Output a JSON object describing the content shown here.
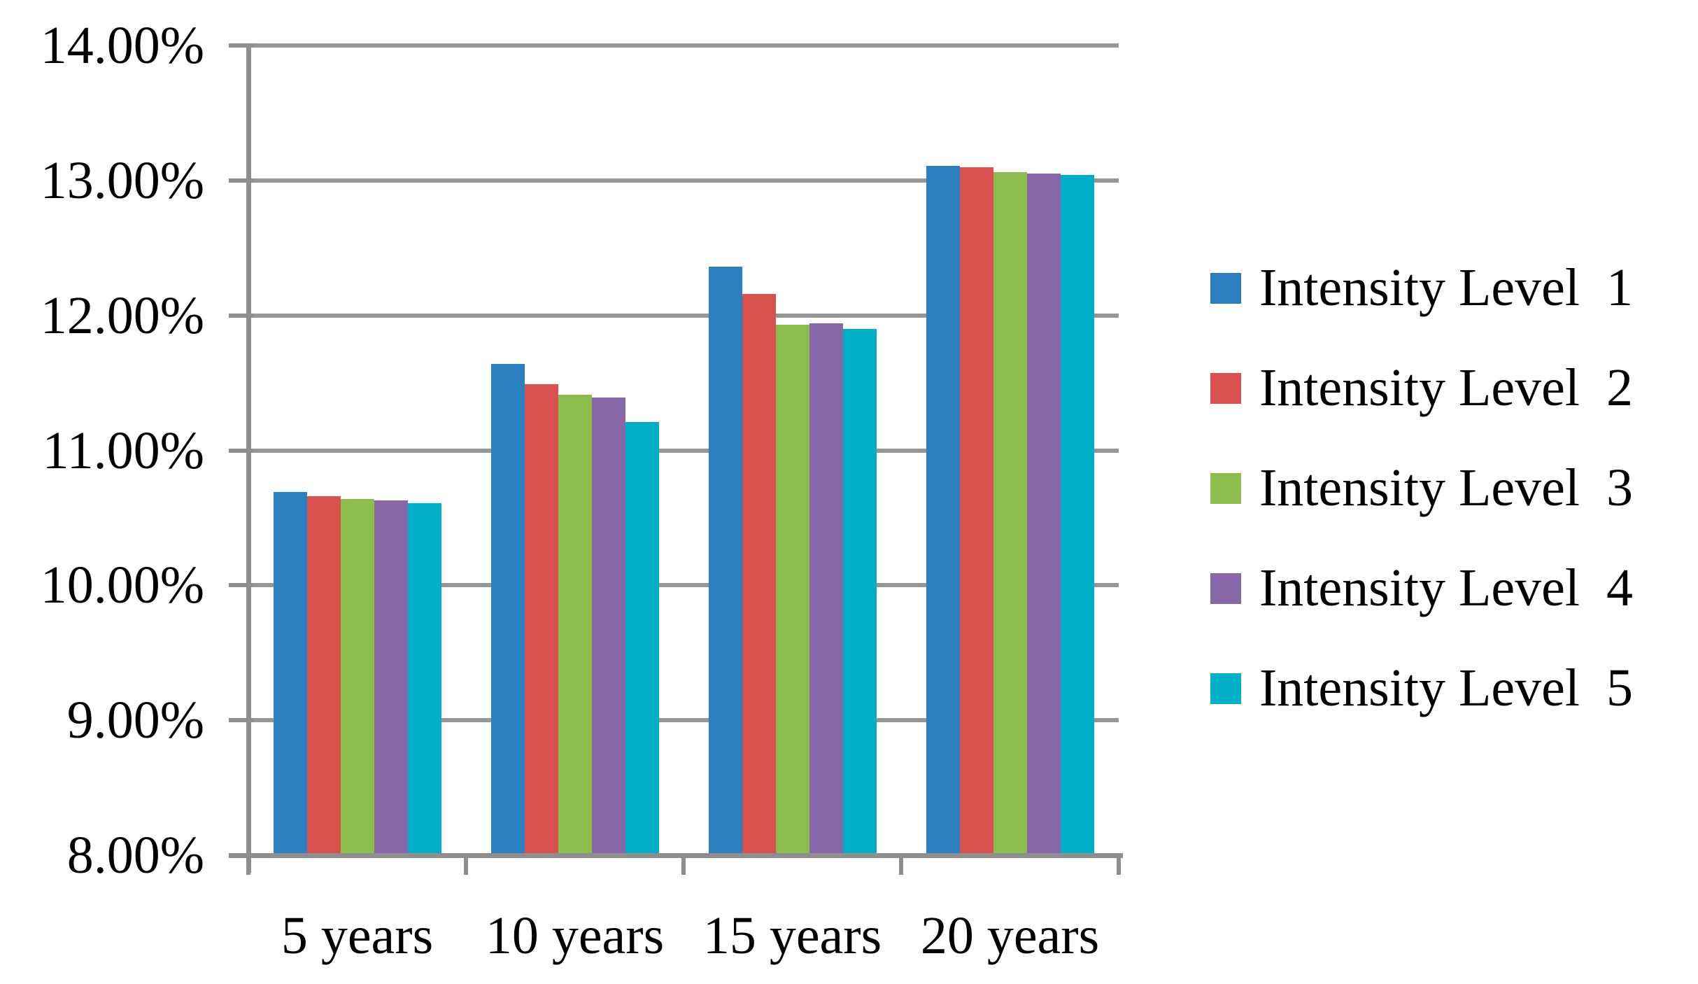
{
  "chart_data": {
    "type": "bar",
    "title": "",
    "xlabel": "",
    "ylabel": "",
    "categories": [
      "5 years",
      "10 years",
      "15 years",
      "20 years"
    ],
    "series": [
      {
        "name": "Intensity Level  1",
        "color": "#2C80BF",
        "values": [
          10.69,
          11.64,
          12.36,
          13.11
        ]
      },
      {
        "name": "Intensity Level  2",
        "color": "#D9514E",
        "values": [
          10.66,
          11.49,
          12.16,
          13.1
        ]
      },
      {
        "name": "Intensity Level  3",
        "color": "#8CBD4C",
        "values": [
          10.64,
          11.41,
          11.93,
          13.06
        ]
      },
      {
        "name": "Intensity Level  4",
        "color": "#8767A7",
        "values": [
          10.63,
          11.39,
          11.94,
          13.05
        ]
      },
      {
        "name": "Intensity Level  5",
        "color": "#00AEC8",
        "values": [
          10.61,
          11.21,
          11.9,
          13.04
        ]
      }
    ],
    "ylim": [
      8,
      14
    ],
    "ytick_step": 1,
    "ytick_labels": [
      "14.00%",
      "13.00%",
      "12.00%",
      "11.00%",
      "10.00%",
      "9.00%",
      "8.00%"
    ],
    "grid": true,
    "gridline_color": "#969696",
    "axis_color": "#8E8E8E",
    "legend_position": "right",
    "background_color": "#ffffff"
  }
}
